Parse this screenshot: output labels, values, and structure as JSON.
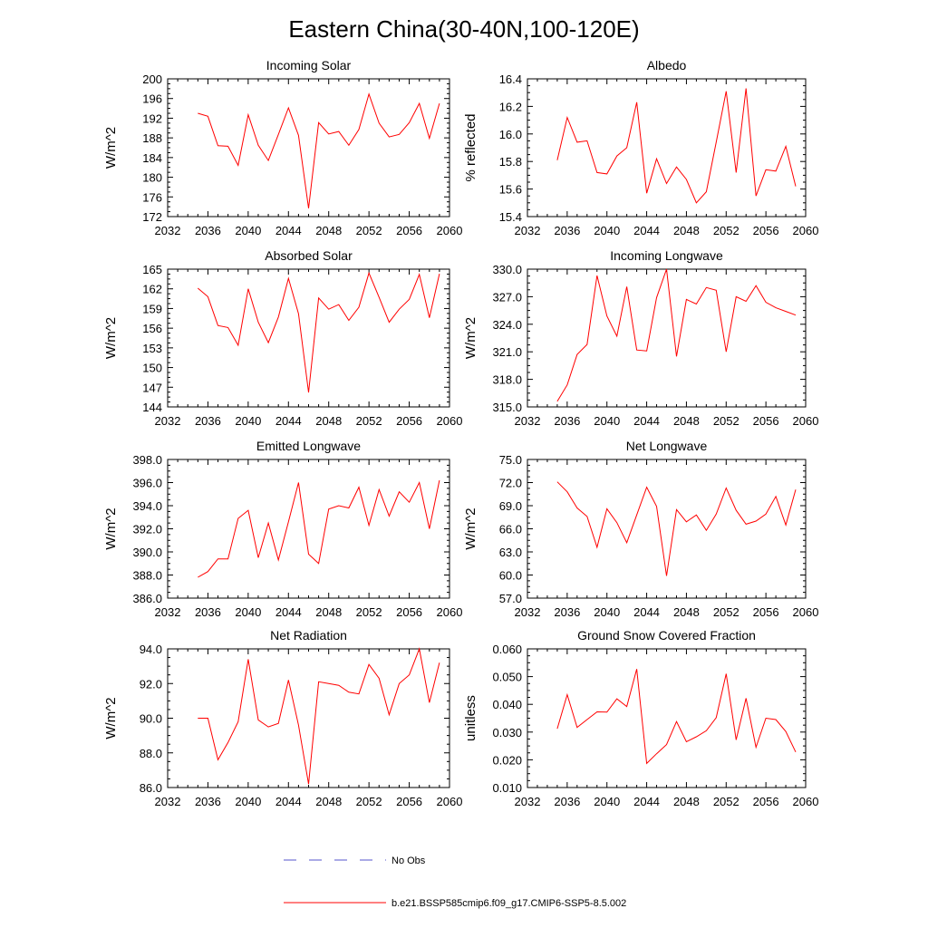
{
  "figure": {
    "title": "Eastern China(30-40N,100-120E)"
  },
  "legend": {
    "obs_label": "No Obs",
    "obs_color": "#5555cc",
    "model_label": "b.e21.BSSP585cmip6.f09_g17.CMIP6-SSP5-8.5.002",
    "model_color": "#ff0000"
  },
  "chart_data": [
    {
      "type": "line",
      "title": "Incoming Solar",
      "xlabel": "",
      "ylabel": "W/m^2",
      "xlim": [
        2032,
        2060
      ],
      "xticks": [
        "2032",
        "2036",
        "2040",
        "2044",
        "2048",
        "2052",
        "2056",
        "2060"
      ],
      "ylim": [
        172,
        200
      ],
      "yticks": [
        "172",
        "176",
        "180",
        "184",
        "188",
        "192",
        "196",
        "200"
      ],
      "x": [
        2035,
        2036,
        2037,
        2038,
        2039,
        2040,
        2041,
        2042,
        2043,
        2044,
        2045,
        2046,
        2047,
        2048,
        2049,
        2050,
        2051,
        2052,
        2053,
        2054,
        2055,
        2056,
        2057,
        2058,
        2059
      ],
      "series": [
        {
          "name": "b.e21.BSSP585cmip6.f09_g17.CMIP6-SSP5-8.5.002",
          "color": "#ff0000",
          "values": [
            193.0,
            192.4,
            186.4,
            186.3,
            182.4,
            192.7,
            186.5,
            183.4,
            188.7,
            194.1,
            188.5,
            173.7,
            191.1,
            188.8,
            189.3,
            186.5,
            189.7,
            196.9,
            191.0,
            188.2,
            188.7,
            191.1,
            195.0,
            187.9,
            195.0
          ]
        }
      ]
    },
    {
      "type": "line",
      "title": "Albedo",
      "xlabel": "",
      "ylabel": "% reflected",
      "xlim": [
        2032,
        2060
      ],
      "xticks": [
        "2032",
        "2036",
        "2040",
        "2044",
        "2048",
        "2052",
        "2056",
        "2060"
      ],
      "ylim": [
        15.4,
        16.4
      ],
      "yticks": [
        "15.4",
        "15.6",
        "15.8",
        "16.0",
        "16.2",
        "16.4"
      ],
      "x": [
        2035,
        2036,
        2037,
        2038,
        2039,
        2040,
        2041,
        2042,
        2043,
        2044,
        2045,
        2046,
        2047,
        2048,
        2049,
        2050,
        2051,
        2052,
        2053,
        2054,
        2055,
        2056,
        2057,
        2058,
        2059
      ],
      "series": [
        {
          "name": "b.e21.BSSP585cmip6.f09_g17.CMIP6-SSP5-8.5.002",
          "color": "#ff0000",
          "values": [
            15.81,
            16.12,
            15.94,
            15.95,
            15.72,
            15.71,
            15.84,
            15.9,
            16.23,
            15.57,
            15.82,
            15.64,
            15.76,
            15.67,
            15.5,
            15.58,
            15.94,
            16.31,
            15.72,
            16.33,
            15.55,
            15.74,
            15.73,
            15.91,
            15.62
          ]
        }
      ]
    },
    {
      "type": "line",
      "title": "Absorbed Solar",
      "xlabel": "",
      "ylabel": "W/m^2",
      "xlim": [
        2032,
        2060
      ],
      "xticks": [
        "2032",
        "2036",
        "2040",
        "2044",
        "2048",
        "2052",
        "2056",
        "2060"
      ],
      "ylim": [
        144,
        165
      ],
      "yticks": [
        "144",
        "147",
        "150",
        "153",
        "156",
        "159",
        "162",
        "165"
      ],
      "x": [
        2035,
        2036,
        2037,
        2038,
        2039,
        2040,
        2041,
        2042,
        2043,
        2044,
        2045,
        2046,
        2047,
        2048,
        2049,
        2050,
        2051,
        2052,
        2053,
        2054,
        2055,
        2056,
        2057,
        2058,
        2059
      ],
      "series": [
        {
          "name": "b.e21.BSSP585cmip6.f09_g17.CMIP6-SSP5-8.5.002",
          "color": "#ff0000",
          "values": [
            162.1,
            160.8,
            156.4,
            156.1,
            153.4,
            162.0,
            156.9,
            153.8,
            157.7,
            163.6,
            158.2,
            146.2,
            160.6,
            158.9,
            159.6,
            157.2,
            159.2,
            164.4,
            160.7,
            156.9,
            158.9,
            160.4,
            164.2,
            157.6,
            164.3
          ]
        }
      ]
    },
    {
      "type": "line",
      "title": "Incoming Longwave",
      "xlabel": "",
      "ylabel": "W/m^2",
      "xlim": [
        2032,
        2060
      ],
      "xticks": [
        "2032",
        "2036",
        "2040",
        "2044",
        "2048",
        "2052",
        "2056",
        "2060"
      ],
      "ylim": [
        315.0,
        330.0
      ],
      "yticks": [
        "315.0",
        "318.0",
        "321.0",
        "324.0",
        "327.0",
        "330.0"
      ],
      "x": [
        2035,
        2036,
        2037,
        2038,
        2039,
        2040,
        2041,
        2042,
        2043,
        2044,
        2045,
        2046,
        2047,
        2048,
        2049,
        2050,
        2051,
        2052,
        2053,
        2054,
        2055,
        2056,
        2057,
        2058,
        2059
      ],
      "series": [
        {
          "name": "b.e21.BSSP585cmip6.f09_g17.CMIP6-SSP5-8.5.002",
          "color": "#ff0000",
          "values": [
            315.6,
            317.4,
            320.7,
            321.8,
            329.3,
            324.9,
            322.7,
            328.1,
            321.2,
            321.1,
            326.9,
            330.0,
            320.5,
            326.7,
            326.2,
            328.0,
            327.7,
            321.0,
            327.0,
            326.5,
            328.2,
            326.4,
            325.8,
            325.4,
            325.0
          ]
        }
      ]
    },
    {
      "type": "line",
      "title": "Emitted Longwave",
      "xlabel": "",
      "ylabel": "W/m^2",
      "xlim": [
        2032,
        2060
      ],
      "xticks": [
        "2032",
        "2036",
        "2040",
        "2044",
        "2048",
        "2052",
        "2056",
        "2060"
      ],
      "ylim": [
        386.0,
        398.0
      ],
      "yticks": [
        "386.0",
        "388.0",
        "390.0",
        "392.0",
        "394.0",
        "396.0",
        "398.0"
      ],
      "x": [
        2035,
        2036,
        2037,
        2038,
        2039,
        2040,
        2041,
        2042,
        2043,
        2044,
        2045,
        2046,
        2047,
        2048,
        2049,
        2050,
        2051,
        2052,
        2053,
        2054,
        2055,
        2056,
        2057,
        2058,
        2059
      ],
      "series": [
        {
          "name": "b.e21.BSSP585cmip6.f09_g17.CMIP6-SSP5-8.5.002",
          "color": "#ff0000",
          "values": [
            387.8,
            388.3,
            389.4,
            389.4,
            392.9,
            393.6,
            389.5,
            392.5,
            389.3,
            392.6,
            396.0,
            389.8,
            389.0,
            393.7,
            394.0,
            393.8,
            395.6,
            392.3,
            395.4,
            393.1,
            395.2,
            394.3,
            396.0,
            392.0,
            396.2
          ]
        }
      ]
    },
    {
      "type": "line",
      "title": "Net Longwave",
      "xlabel": "",
      "ylabel": "W/m^2",
      "xlim": [
        2032,
        2060
      ],
      "xticks": [
        "2032",
        "2036",
        "2040",
        "2044",
        "2048",
        "2052",
        "2056",
        "2060"
      ],
      "ylim": [
        57.0,
        75.0
      ],
      "yticks": [
        "57.0",
        "60.0",
        "63.0",
        "66.0",
        "69.0",
        "72.0",
        "75.0"
      ],
      "x": [
        2035,
        2036,
        2037,
        2038,
        2039,
        2040,
        2041,
        2042,
        2043,
        2044,
        2045,
        2046,
        2047,
        2048,
        2049,
        2050,
        2051,
        2052,
        2053,
        2054,
        2055,
        2056,
        2057,
        2058,
        2059
      ],
      "series": [
        {
          "name": "b.e21.BSSP585cmip6.f09_g17.CMIP6-SSP5-8.5.002",
          "color": "#ff0000",
          "values": [
            72.1,
            70.8,
            68.7,
            67.6,
            63.6,
            68.6,
            66.8,
            64.2,
            67.8,
            71.4,
            68.9,
            59.9,
            68.5,
            66.9,
            67.8,
            65.8,
            67.9,
            71.3,
            68.4,
            66.6,
            67.0,
            67.9,
            70.2,
            66.5,
            71.1
          ]
        }
      ]
    },
    {
      "type": "line",
      "title": "Net Radiation",
      "xlabel": "",
      "ylabel": "W/m^2",
      "xlim": [
        2032,
        2060
      ],
      "xticks": [
        "2032",
        "2036",
        "2040",
        "2044",
        "2048",
        "2052",
        "2056",
        "2060"
      ],
      "ylim": [
        86.0,
        94.0
      ],
      "yticks": [
        "86.0",
        "88.0",
        "90.0",
        "92.0",
        "94.0"
      ],
      "x": [
        2035,
        2036,
        2037,
        2038,
        2039,
        2040,
        2041,
        2042,
        2043,
        2044,
        2045,
        2046,
        2047,
        2048,
        2049,
        2050,
        2051,
        2052,
        2053,
        2054,
        2055,
        2056,
        2057,
        2058,
        2059
      ],
      "series": [
        {
          "name": "b.e21.BSSP585cmip6.f09_g17.CMIP6-SSP5-8.5.002",
          "color": "#ff0000",
          "values": [
            90.0,
            90.0,
            87.6,
            88.6,
            89.8,
            93.4,
            89.9,
            89.5,
            89.7,
            92.2,
            89.6,
            86.2,
            92.1,
            92.0,
            91.9,
            91.5,
            91.4,
            93.1,
            92.3,
            90.2,
            92.0,
            92.5,
            94.0,
            90.9,
            93.2
          ]
        }
      ]
    },
    {
      "type": "line",
      "title": "Ground Snow Covered Fraction",
      "xlabel": "",
      "ylabel": "unitless",
      "xlim": [
        2032,
        2060
      ],
      "xticks": [
        "2032",
        "2036",
        "2040",
        "2044",
        "2048",
        "2052",
        "2056",
        "2060"
      ],
      "ylim": [
        0.01,
        0.06
      ],
      "yticks": [
        "0.010",
        "0.020",
        "0.030",
        "0.040",
        "0.050",
        "0.060"
      ],
      "x": [
        2035,
        2036,
        2037,
        2038,
        2039,
        2040,
        2041,
        2042,
        2043,
        2044,
        2045,
        2046,
        2047,
        2048,
        2049,
        2050,
        2051,
        2052,
        2053,
        2054,
        2055,
        2056,
        2057,
        2058,
        2059
      ],
      "series": [
        {
          "name": "b.e21.BSSP585cmip6.f09_g17.CMIP6-SSP5-8.5.002",
          "color": "#ff0000",
          "values": [
            0.0312,
            0.0435,
            0.0317,
            0.0345,
            0.0373,
            0.0372,
            0.042,
            0.0392,
            0.0527,
            0.0187,
            0.0222,
            0.0255,
            0.0338,
            0.0265,
            0.0283,
            0.0305,
            0.0352,
            0.051,
            0.0272,
            0.0422,
            0.0245,
            0.035,
            0.0345,
            0.0302,
            0.0228
          ]
        }
      ]
    }
  ]
}
